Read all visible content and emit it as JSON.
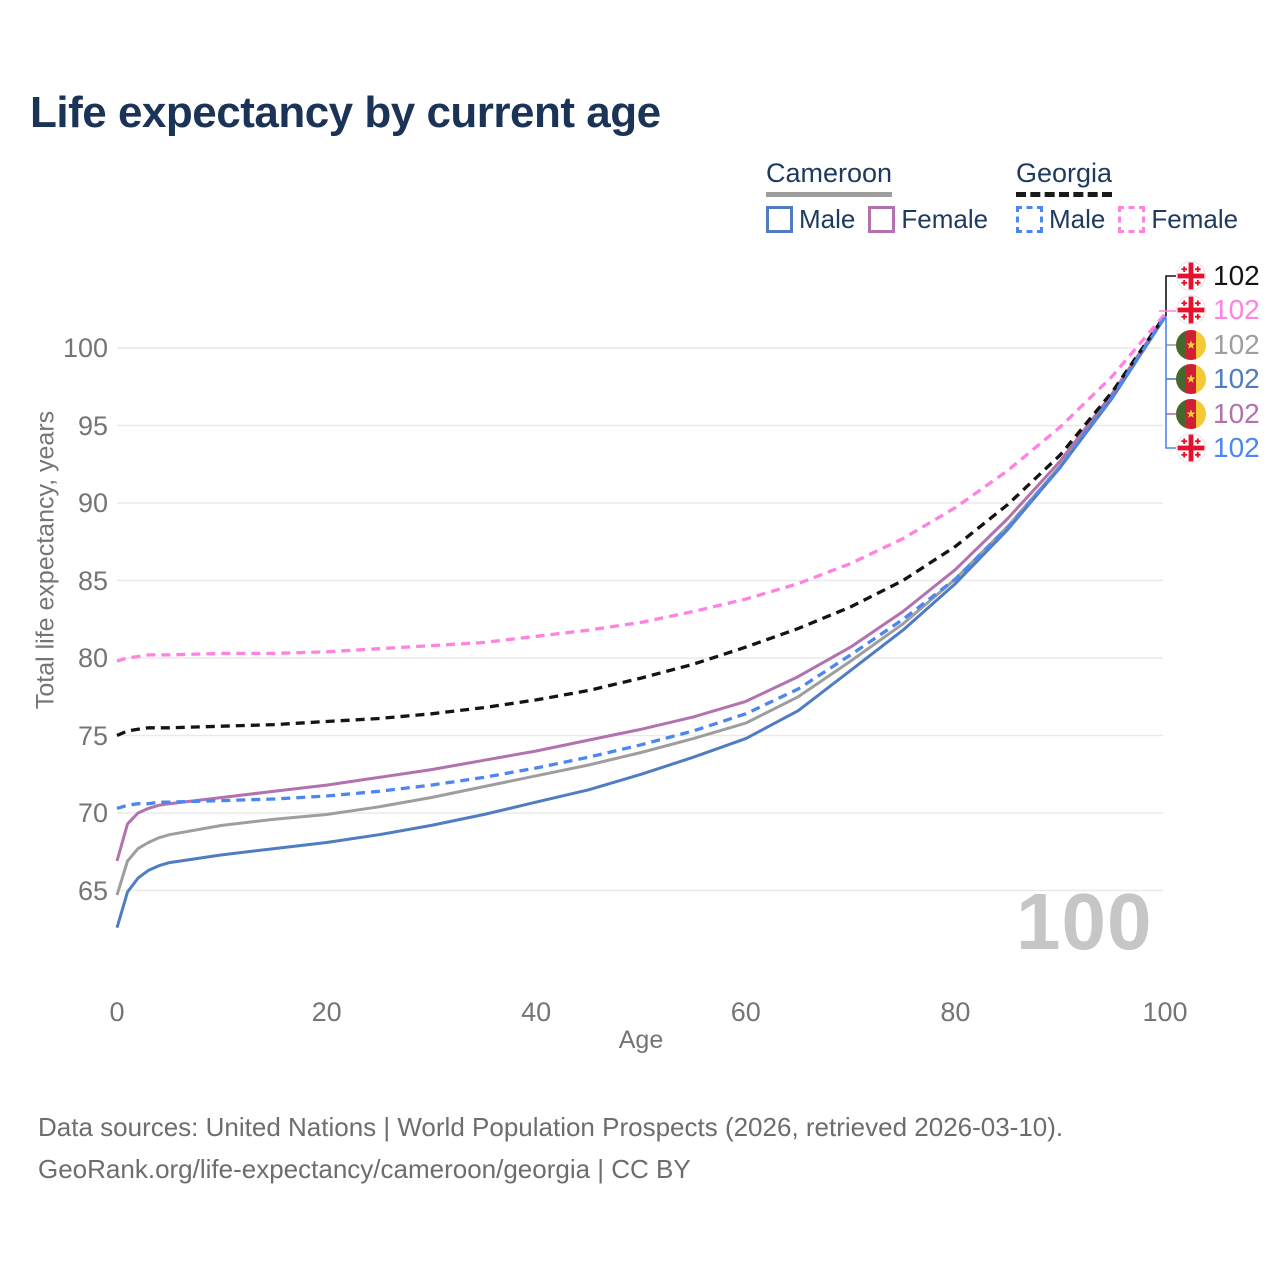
{
  "title": "Life expectancy by current age",
  "legend": {
    "groups": [
      {
        "label": "Cameroon",
        "line_style": "solid",
        "underline_color": "#9e9e9e",
        "items": [
          {
            "label": "Male",
            "color": "#4e7dc1",
            "dashed": false
          },
          {
            "label": "Female",
            "color": "#b172ae",
            "dashed": false
          }
        ]
      },
      {
        "label": "Georgia",
        "line_style": "dashed",
        "underline_color": "#1a1a1a",
        "items": [
          {
            "label": "Male",
            "color": "#4c86f0",
            "dashed": true
          },
          {
            "label": "Female",
            "color": "#ff82e1",
            "dashed": true
          }
        ]
      }
    ]
  },
  "chart_data": {
    "type": "line",
    "title": "Life expectancy by current age",
    "xlabel": "Age",
    "ylabel": "Total life expectancy, years",
    "xlim": [
      0,
      100
    ],
    "ylim": [
      62,
      103
    ],
    "x_ticks": [
      0,
      20,
      40,
      60,
      80,
      100
    ],
    "y_ticks": [
      65,
      70,
      75,
      80,
      85,
      90,
      95,
      100
    ],
    "grid": "horizontal",
    "legend_position": "top-right",
    "ages": [
      0,
      1,
      2,
      3,
      4,
      5,
      10,
      15,
      20,
      25,
      30,
      35,
      40,
      45,
      50,
      55,
      60,
      65,
      70,
      75,
      80,
      85,
      90,
      95,
      100
    ],
    "series": [
      {
        "name": "Cameroon both sexes",
        "country": "Cameroon",
        "sex": "both",
        "color": "#9e9e9e",
        "dashed": false,
        "values": [
          64.7,
          66.9,
          67.7,
          68.1,
          68.4,
          68.6,
          69.2,
          69.6,
          69.9,
          70.4,
          71.0,
          71.7,
          72.4,
          73.1,
          73.9,
          74.8,
          75.8,
          77.5,
          79.8,
          82.2,
          85.1,
          88.5,
          92.4,
          96.9,
          102.0
        ],
        "end_label": "102"
      },
      {
        "name": "Cameroon male",
        "country": "Cameroon",
        "sex": "male",
        "color": "#4e7dc1",
        "dashed": false,
        "values": [
          62.6,
          64.9,
          65.8,
          66.3,
          66.6,
          66.8,
          67.3,
          67.7,
          68.1,
          68.6,
          69.2,
          69.9,
          70.7,
          71.5,
          72.5,
          73.6,
          74.8,
          76.6,
          79.2,
          81.8,
          84.8,
          88.3,
          92.3,
          96.8,
          102.0
        ],
        "end_label": "102"
      },
      {
        "name": "Cameroon female",
        "country": "Cameroon",
        "sex": "female",
        "color": "#b172ae",
        "dashed": false,
        "values": [
          66.9,
          69.3,
          70.0,
          70.3,
          70.5,
          70.6,
          71.0,
          71.4,
          71.8,
          72.3,
          72.8,
          73.4,
          74.0,
          74.7,
          75.4,
          76.2,
          77.2,
          78.8,
          80.7,
          83.0,
          85.7,
          89.0,
          92.7,
          97.1,
          102.1
        ],
        "end_label": "102"
      },
      {
        "name": "Georgia both sexes",
        "country": "Georgia",
        "sex": "both",
        "color": "#141414",
        "dashed": true,
        "values": [
          75.0,
          75.3,
          75.4,
          75.5,
          75.5,
          75.5,
          75.6,
          75.7,
          75.9,
          76.1,
          76.4,
          76.8,
          77.3,
          77.9,
          78.7,
          79.6,
          80.7,
          81.9,
          83.3,
          85.0,
          87.2,
          89.9,
          93.1,
          97.2,
          102.1
        ],
        "end_label": "102"
      },
      {
        "name": "Georgia female",
        "country": "Georgia",
        "sex": "female",
        "color": "#ff82e1",
        "dashed": true,
        "values": [
          79.8,
          80.0,
          80.1,
          80.2,
          80.2,
          80.2,
          80.3,
          80.3,
          80.4,
          80.6,
          80.8,
          81.0,
          81.4,
          81.8,
          82.3,
          83.0,
          83.8,
          84.8,
          86.1,
          87.7,
          89.7,
          92.1,
          94.9,
          98.2,
          102.2
        ],
        "end_label": "102"
      },
      {
        "name": "Georgia male",
        "country": "Georgia",
        "sex": "male",
        "color": "#4c86f0",
        "dashed": true,
        "values": [
          70.3,
          70.5,
          70.6,
          70.6,
          70.7,
          70.7,
          70.8,
          70.9,
          71.1,
          71.4,
          71.8,
          72.3,
          72.9,
          73.6,
          74.4,
          75.3,
          76.4,
          78.0,
          80.2,
          82.5,
          85.1,
          88.4,
          92.3,
          96.9,
          102.0
        ],
        "end_label": "102"
      }
    ],
    "end_rows": [
      {
        "flag": "georgia",
        "label": "102",
        "color": "#141414"
      },
      {
        "flag": "georgia",
        "label": "102",
        "color": "#ff82e1"
      },
      {
        "flag": "cameroon",
        "label": "102",
        "color": "#9e9e9e"
      },
      {
        "flag": "cameroon",
        "label": "102",
        "color": "#4e7dc1"
      },
      {
        "flag": "cameroon",
        "label": "102",
        "color": "#b172ae"
      },
      {
        "flag": "georgia",
        "label": "102",
        "color": "#4c86f0"
      }
    ]
  },
  "watermark": "100",
  "footer": {
    "line1": "Data sources: United Nations | World Population Prospects (2026, retrieved 2026-03-10).",
    "line2": "GeoRank.org/life-expectancy/cameroon/georgia | CC BY"
  }
}
